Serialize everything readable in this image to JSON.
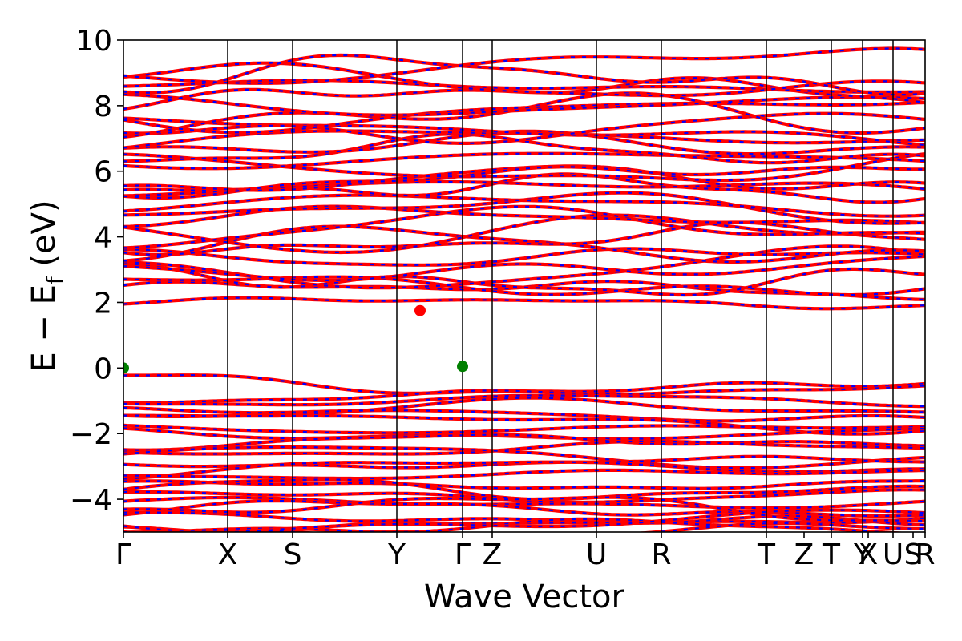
{
  "chart_data": {
    "type": "line",
    "xlabel": "Wave Vector",
    "ylabel": "E − E_f (eV)",
    "ylabel_main": "E − E",
    "ylabel_sub": "f",
    "ylabel_unit": " (eV)",
    "ylim": [
      -5,
      10
    ],
    "yticks": [
      {
        "value": -4,
        "label": "−4"
      },
      {
        "value": -2,
        "label": "−2"
      },
      {
        "value": 0,
        "label": "0"
      },
      {
        "value": 2,
        "label": "2"
      },
      {
        "value": 4,
        "label": "4"
      },
      {
        "value": 6,
        "label": "6"
      },
      {
        "value": 8,
        "label": "8"
      },
      {
        "value": 10,
        "label": "10"
      }
    ],
    "kpath": [
      {
        "label": "Γ",
        "pos": 0.0
      },
      {
        "label": "X",
        "pos": 0.13
      },
      {
        "label": "S",
        "pos": 0.211
      },
      {
        "label": "Y",
        "pos": 0.341
      },
      {
        "label": "Γ",
        "pos": 0.423
      },
      {
        "label": "Z",
        "pos": 0.46
      },
      {
        "label": "U",
        "pos": 0.59
      },
      {
        "label": "R",
        "pos": 0.671
      },
      {
        "label": "T",
        "pos": 0.802
      },
      {
        "label": "Z",
        "pos": 0.849
      },
      {
        "label": "T",
        "pos": 0.883
      },
      {
        "label": "Y",
        "pos": 0.922
      },
      {
        "label": "X",
        "pos": 0.929
      },
      {
        "label": "U",
        "pos": 0.96
      },
      {
        "label": "S",
        "pos": 0.985
      },
      {
        "label": "R",
        "pos": 1.0
      }
    ],
    "vlines": [
      0.13,
      0.211,
      0.341,
      0.423,
      0.46,
      0.59,
      0.671,
      0.802,
      0.883,
      0.922,
      0.96
    ],
    "series": [
      {
        "color": "#ff0000"
      },
      {
        "color": "#0000ff"
      }
    ],
    "markers": [
      {
        "kpos": 0.0,
        "energy": 0.0,
        "color": "#008000"
      },
      {
        "kpos": 0.423,
        "energy": 0.05,
        "color": "#008000"
      },
      {
        "kpos": 0.37,
        "energy": 1.75,
        "color": "#ff0000"
      }
    ]
  }
}
